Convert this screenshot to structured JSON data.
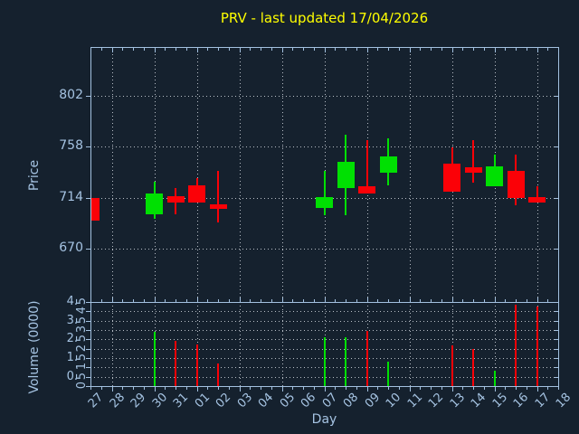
{
  "title": "PRV - last updated 17/04/2026",
  "colors": {
    "background": "#15212e",
    "spine": "#a3c1e0",
    "grid": "#b8bec6",
    "tick_label": "#a5c3e2",
    "title": "#ffff00",
    "up": "#00e002",
    "down": "#fb0107"
  },
  "chart_data": {
    "type": "candlestick",
    "title": "PRV - last updated 17/04/2026",
    "xlabel": "Day",
    "x_categories": [
      "27",
      "28",
      "29",
      "30",
      "31",
      "01",
      "02",
      "03",
      "04",
      "05",
      "06",
      "07",
      "08",
      "09",
      "10",
      "11",
      "12",
      "13",
      "14",
      "15",
      "16",
      "17",
      "18"
    ],
    "gridline_category_indices": [
      1,
      3,
      5,
      7,
      9,
      11,
      13,
      15,
      17,
      19,
      21
    ],
    "grid": "dotted",
    "legend": "none",
    "price_panel": {
      "ylabel": "Price",
      "yticks": [
        802,
        758,
        714,
        670
      ],
      "ylim": [
        624,
        844
      ]
    },
    "volume_panel": {
      "ylabel": "Volume (0000)",
      "yticks": [
        4.5,
        4,
        3.5,
        3,
        2.5,
        2,
        1.5,
        1,
        0.5,
        0
      ],
      "ylim": [
        0,
        4.5
      ]
    },
    "series": [
      {
        "day": "27",
        "index": 0,
        "open": 714,
        "high": 714,
        "low": 694,
        "close": 694,
        "direction": "down",
        "volume": null
      },
      {
        "day": "30",
        "index": 3,
        "open": 699.5,
        "high": 727.5,
        "low": 695.5,
        "close": 718,
        "direction": "up",
        "volume": 2.9
      },
      {
        "day": "31",
        "index": 4,
        "open": 715,
        "high": 722,
        "low": 699.5,
        "close": 709.5,
        "direction": "down",
        "volume": 2.4
      },
      {
        "day": "01",
        "index": 5,
        "open": 724.5,
        "high": 731,
        "low": 709.5,
        "close": 709.5,
        "direction": "down",
        "volume": 2.25
      },
      {
        "day": "02",
        "index": 6,
        "open": 708,
        "high": 737.5,
        "low": 693,
        "close": 704.5,
        "direction": "down",
        "volume": 1.2
      },
      {
        "day": "07",
        "index": 11,
        "open": 705.5,
        "high": 737,
        "low": 698.5,
        "close": 714.5,
        "direction": "up",
        "volume": 2.6
      },
      {
        "day": "08",
        "index": 12,
        "open": 722,
        "high": 768,
        "low": 699,
        "close": 745,
        "direction": "up",
        "volume": 2.6
      },
      {
        "day": "09",
        "index": 13,
        "open": 723.5,
        "high": 764,
        "low": 717.5,
        "close": 717.5,
        "direction": "down",
        "volume": 2.95
      },
      {
        "day": "10",
        "index": 14,
        "open": 735.5,
        "high": 765,
        "low": 724.5,
        "close": 749.5,
        "direction": "up",
        "volume": 1.3
      },
      {
        "day": "13",
        "index": 17,
        "open": 743,
        "high": 757.5,
        "low": 719.5,
        "close": 719.5,
        "direction": "down",
        "volume": 2.2
      },
      {
        "day": "14",
        "index": 18,
        "open": 740.5,
        "high": 764,
        "low": 727,
        "close": 735.5,
        "direction": "down",
        "volume": 2.0
      },
      {
        "day": "15",
        "index": 19,
        "open": 723.5,
        "high": 751,
        "low": 723.5,
        "close": 741,
        "direction": "up",
        "volume": 0.8
      },
      {
        "day": "16",
        "index": 20,
        "open": 737.5,
        "high": 751,
        "low": 707.5,
        "close": 714,
        "direction": "down",
        "volume": 4.35
      },
      {
        "day": "17",
        "index": 21,
        "open": 714.5,
        "high": 723.5,
        "low": 710,
        "close": 710,
        "direction": "down",
        "volume": 4.25
      }
    ]
  }
}
